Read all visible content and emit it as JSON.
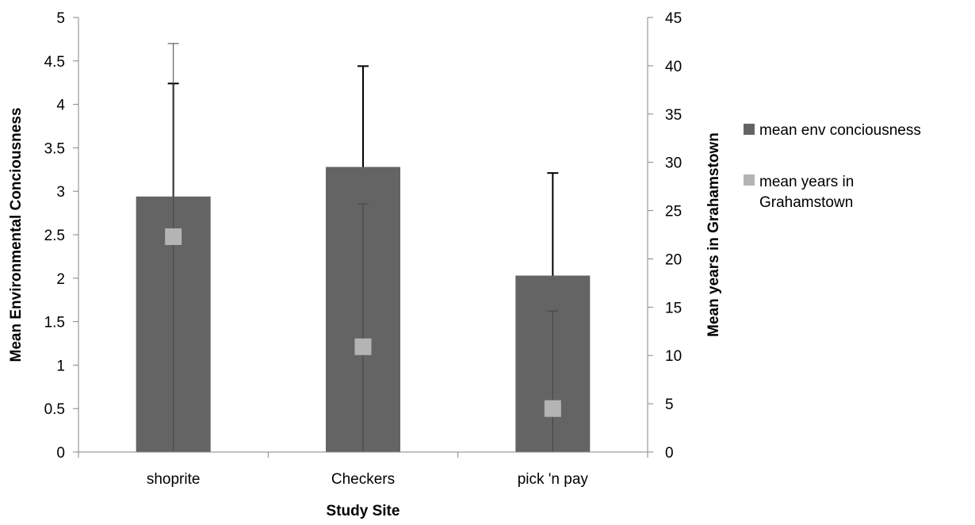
{
  "chart_data": {
    "type": "bar",
    "xlabel": "Study Site",
    "ylabel": "Mean Environmental Conciousness",
    "y2label": "Mean years in Grahamstown",
    "categories": [
      "shoprite",
      "Checkers",
      "pick 'n pay"
    ],
    "ylim": [
      0,
      5
    ],
    "y2lim": [
      0,
      45
    ],
    "yticks": [
      "0",
      "0.5",
      "1",
      "1.5",
      "2",
      "2.5",
      "3",
      "3.5",
      "4",
      "4.5",
      "5"
    ],
    "y2ticks": [
      "0",
      "5",
      "10",
      "15",
      "20",
      "25",
      "30",
      "35",
      "40",
      "45"
    ],
    "grid": false,
    "legend_position": "right",
    "series": [
      {
        "name": "mean env conciousness",
        "kind": "bar",
        "axis": "left",
        "color": "#646464",
        "values": [
          2.94,
          3.28,
          2.03
        ],
        "error_upper": [
          4.24,
          4.44,
          3.21
        ]
      },
      {
        "name": "mean years in Grahamstown",
        "kind": "marker",
        "axis": "right",
        "color": "#b4b4b4",
        "values": [
          22.3,
          10.9,
          4.5
        ],
        "error_upper": [
          42.3,
          25.7,
          14.6
        ],
        "error_lower": [
          0,
          0,
          0
        ]
      }
    ]
  }
}
